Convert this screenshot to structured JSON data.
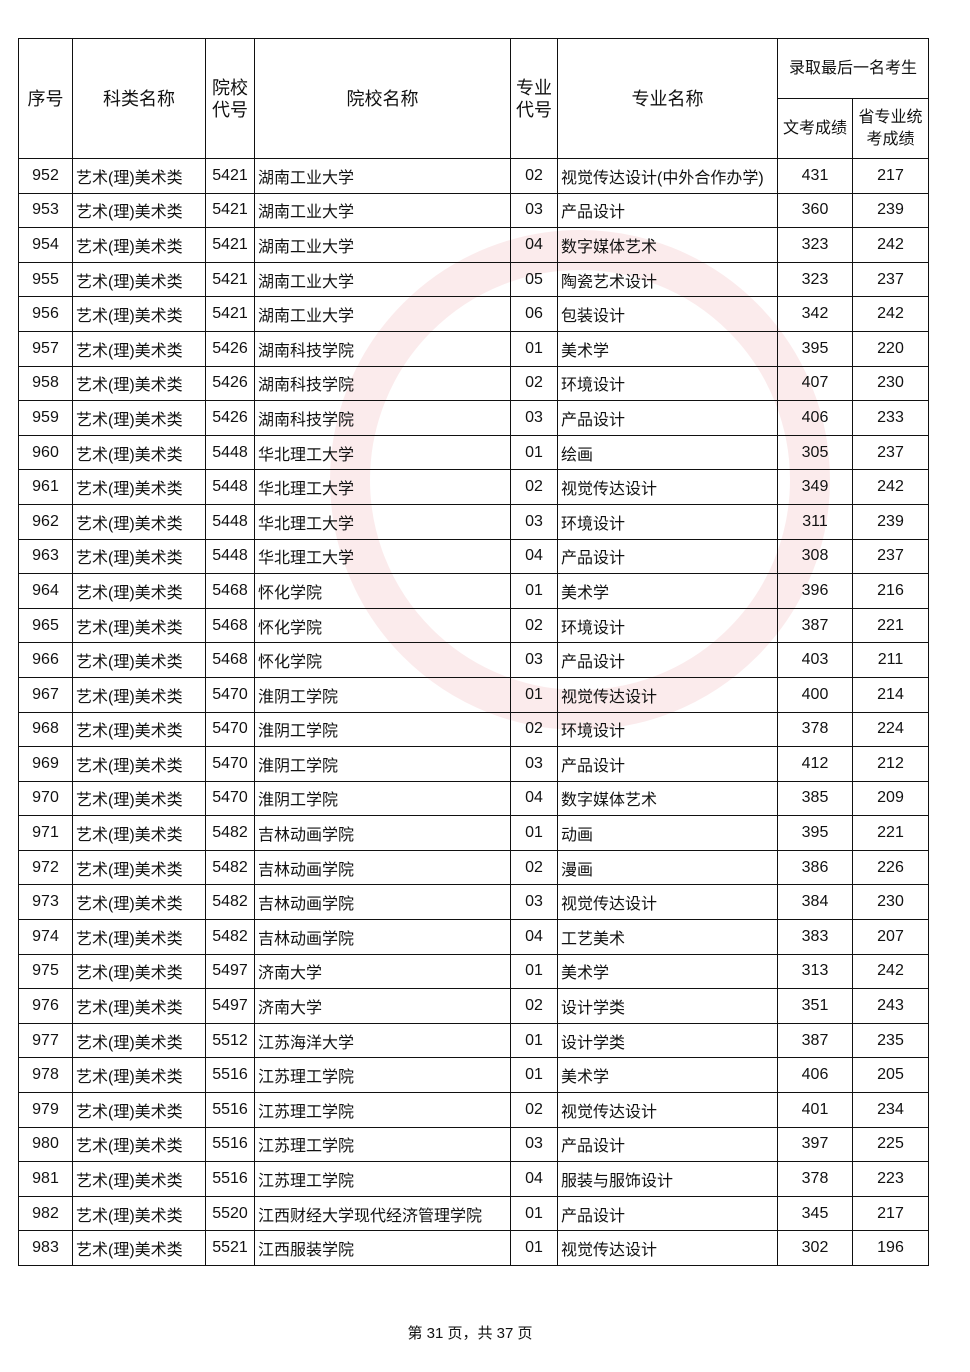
{
  "header": {
    "seq": "序号",
    "category": "科类名称",
    "school_code": "院校代号",
    "school_name": "院校名称",
    "major_code": "专业代号",
    "major_name": "专业名称",
    "last_admitted": "录取最后一名考生",
    "culture_score": "文考成绩",
    "art_score": "省专业统考成绩"
  },
  "table": {
    "rows": [
      [
        "952",
        "艺术(理)美术类",
        "5421",
        "湖南工业大学",
        "02",
        "视觉传达设计(中外合作办学)",
        "431",
        "217"
      ],
      [
        "953",
        "艺术(理)美术类",
        "5421",
        "湖南工业大学",
        "03",
        "产品设计",
        "360",
        "239"
      ],
      [
        "954",
        "艺术(理)美术类",
        "5421",
        "湖南工业大学",
        "04",
        "数字媒体艺术",
        "323",
        "242"
      ],
      [
        "955",
        "艺术(理)美术类",
        "5421",
        "湖南工业大学",
        "05",
        "陶瓷艺术设计",
        "323",
        "237"
      ],
      [
        "956",
        "艺术(理)美术类",
        "5421",
        "湖南工业大学",
        "06",
        "包装设计",
        "342",
        "242"
      ],
      [
        "957",
        "艺术(理)美术类",
        "5426",
        "湖南科技学院",
        "01",
        "美术学",
        "395",
        "220"
      ],
      [
        "958",
        "艺术(理)美术类",
        "5426",
        "湖南科技学院",
        "02",
        "环境设计",
        "407",
        "230"
      ],
      [
        "959",
        "艺术(理)美术类",
        "5426",
        "湖南科技学院",
        "03",
        "产品设计",
        "406",
        "233"
      ],
      [
        "960",
        "艺术(理)美术类",
        "5448",
        "华北理工大学",
        "01",
        "绘画",
        "305",
        "237"
      ],
      [
        "961",
        "艺术(理)美术类",
        "5448",
        "华北理工大学",
        "02",
        "视觉传达设计",
        "349",
        "242"
      ],
      [
        "962",
        "艺术(理)美术类",
        "5448",
        "华北理工大学",
        "03",
        "环境设计",
        "311",
        "239"
      ],
      [
        "963",
        "艺术(理)美术类",
        "5448",
        "华北理工大学",
        "04",
        "产品设计",
        "308",
        "237"
      ],
      [
        "964",
        "艺术(理)美术类",
        "5468",
        "怀化学院",
        "01",
        "美术学",
        "396",
        "216"
      ],
      [
        "965",
        "艺术(理)美术类",
        "5468",
        "怀化学院",
        "02",
        "环境设计",
        "387",
        "221"
      ],
      [
        "966",
        "艺术(理)美术类",
        "5468",
        "怀化学院",
        "03",
        "产品设计",
        "403",
        "211"
      ],
      [
        "967",
        "艺术(理)美术类",
        "5470",
        "淮阴工学院",
        "01",
        "视觉传达设计",
        "400",
        "214"
      ],
      [
        "968",
        "艺术(理)美术类",
        "5470",
        "淮阴工学院",
        "02",
        "环境设计",
        "378",
        "224"
      ],
      [
        "969",
        "艺术(理)美术类",
        "5470",
        "淮阴工学院",
        "03",
        "产品设计",
        "412",
        "212"
      ],
      [
        "970",
        "艺术(理)美术类",
        "5470",
        "淮阴工学院",
        "04",
        "数字媒体艺术",
        "385",
        "209"
      ],
      [
        "971",
        "艺术(理)美术类",
        "5482",
        "吉林动画学院",
        "01",
        "动画",
        "395",
        "221"
      ],
      [
        "972",
        "艺术(理)美术类",
        "5482",
        "吉林动画学院",
        "02",
        "漫画",
        "386",
        "226"
      ],
      [
        "973",
        "艺术(理)美术类",
        "5482",
        "吉林动画学院",
        "03",
        "视觉传达设计",
        "384",
        "230"
      ],
      [
        "974",
        "艺术(理)美术类",
        "5482",
        "吉林动画学院",
        "04",
        "工艺美术",
        "383",
        "207"
      ],
      [
        "975",
        "艺术(理)美术类",
        "5497",
        "济南大学",
        "01",
        "美术学",
        "313",
        "242"
      ],
      [
        "976",
        "艺术(理)美术类",
        "5497",
        "济南大学",
        "02",
        "设计学类",
        "351",
        "243"
      ],
      [
        "977",
        "艺术(理)美术类",
        "5512",
        "江苏海洋大学",
        "01",
        "设计学类",
        "387",
        "235"
      ],
      [
        "978",
        "艺术(理)美术类",
        "5516",
        "江苏理工学院",
        "01",
        "美术学",
        "406",
        "205"
      ],
      [
        "979",
        "艺术(理)美术类",
        "5516",
        "江苏理工学院",
        "02",
        "视觉传达设计",
        "401",
        "234"
      ],
      [
        "980",
        "艺术(理)美术类",
        "5516",
        "江苏理工学院",
        "03",
        "产品设计",
        "397",
        "225"
      ],
      [
        "981",
        "艺术(理)美术类",
        "5516",
        "江苏理工学院",
        "04",
        "服装与服饰设计",
        "378",
        "223"
      ],
      [
        "982",
        "艺术(理)美术类",
        "5520",
        "江西财经大学现代经济管理学院",
        "01",
        "产品设计",
        "345",
        "217"
      ],
      [
        "983",
        "艺术(理)美术类",
        "5521",
        "江西服装学院",
        "01",
        "视觉传达设计",
        "302",
        "196"
      ]
    ]
  },
  "footer": {
    "page": "第 31 页，共 37 页"
  }
}
